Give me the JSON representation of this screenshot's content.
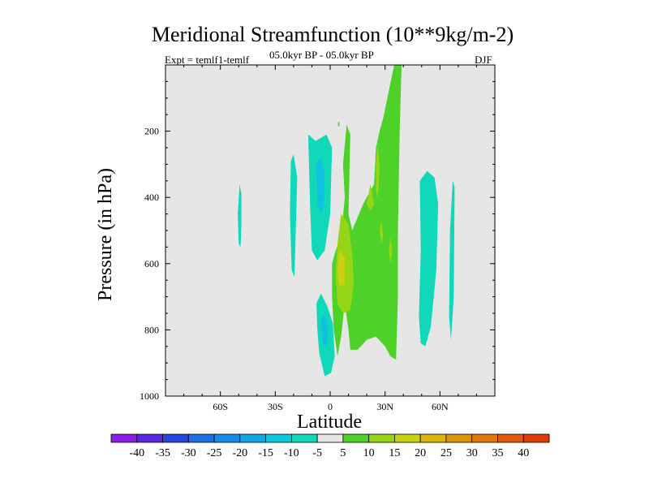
{
  "chart_data": {
    "type": "contour",
    "title": "Meridional Streamfunction (10**9kg/m-2)",
    "subtitle_left": "Expt = temlf1-temlf",
    "subtitle_center": "05.0kyr BP - 05.0kyr BP",
    "subtitle_right": "DJF",
    "xlabel": "Latitude",
    "ylabel": "Pressure (in hPa)",
    "xlim": [
      -90,
      90
    ],
    "ylim": [
      1000,
      0
    ],
    "x_ticks": [
      {
        "value": -60,
        "label": "60S"
      },
      {
        "value": -30,
        "label": "30S"
      },
      {
        "value": 0,
        "label": "0"
      },
      {
        "value": 30,
        "label": "30N"
      },
      {
        "value": 60,
        "label": "60N"
      }
    ],
    "y_ticks": [
      {
        "value": 200,
        "label": "200"
      },
      {
        "value": 400,
        "label": "400"
      },
      {
        "value": 600,
        "label": "600"
      },
      {
        "value": 800,
        "label": "800"
      },
      {
        "value": 1000,
        "label": "1000"
      }
    ],
    "background_color": "#e6e6e6",
    "colorbar": {
      "labels": [
        "-40",
        "-35",
        "-30",
        "-25",
        "-20",
        "-15",
        "-10",
        "-5",
        "5",
        "10",
        "15",
        "20",
        "25",
        "30",
        "35",
        "40"
      ],
      "colors": [
        "#8a1ee6",
        "#5a28e0",
        "#2a46e0",
        "#1e6ee6",
        "#148ce8",
        "#12a6e6",
        "#10c8dc",
        "#10d8b8",
        "#e6e6e6",
        "#4ed22a",
        "#96d616",
        "#c8d20e",
        "#dcb40a",
        "#dc960a",
        "#e0780a",
        "#e05a0a",
        "#e03c0a"
      ]
    },
    "regions": [
      {
        "name": "neg-5-a",
        "color": "#10d8b8",
        "points": [
          [
            -49.5,
            360
          ],
          [
            -48.5,
            390
          ],
          [
            -48.5,
            480
          ],
          [
            -49,
            550
          ],
          [
            -50,
            540
          ],
          [
            -50.5,
            450
          ]
        ]
      },
      {
        "name": "neg-5-b",
        "color": "#10d8b8",
        "points": [
          [
            -21.5,
            290
          ],
          [
            -20,
            270
          ],
          [
            -18,
            340
          ],
          [
            -19.5,
            640
          ],
          [
            -21,
            620
          ],
          [
            -22,
            450
          ]
        ]
      },
      {
        "name": "neg-5-c",
        "color": "#10d8b8",
        "points": [
          [
            -12,
            210
          ],
          [
            -8,
            230
          ],
          [
            -5,
            220
          ],
          [
            -2,
            210
          ],
          [
            1,
            250
          ],
          [
            0,
            450
          ],
          [
            -3,
            560
          ],
          [
            -7,
            590
          ],
          [
            -10,
            560
          ],
          [
            -11,
            420
          ]
        ]
      },
      {
        "name": "neg-10-c",
        "color": "#12c0e0",
        "points": [
          [
            -7.5,
            300
          ],
          [
            -5,
            280
          ],
          [
            -3,
            330
          ],
          [
            -3.5,
            420
          ],
          [
            -5,
            450
          ],
          [
            -7,
            420
          ]
        ]
      },
      {
        "name": "neg-5-d",
        "color": "#10d8b8",
        "points": [
          [
            -7.5,
            720
          ],
          [
            -5,
            690
          ],
          [
            -1.5,
            730
          ],
          [
            1.5,
            780
          ],
          [
            2.5,
            880
          ],
          [
            0.5,
            930
          ],
          [
            -3,
            940
          ],
          [
            -6,
            870
          ],
          [
            -7,
            800
          ]
        ]
      },
      {
        "name": "neg-10-d",
        "color": "#12c0e0",
        "points": [
          [
            -5,
            770
          ],
          [
            -3,
            750
          ],
          [
            -1,
            800
          ],
          [
            -2,
            850
          ],
          [
            -4,
            840
          ]
        ]
      },
      {
        "name": "neg-5-e",
        "color": "#10d8b8",
        "points": [
          [
            49,
            350
          ],
          [
            53,
            320
          ],
          [
            57,
            340
          ],
          [
            59,
            420
          ],
          [
            58,
            620
          ],
          [
            55,
            790
          ],
          [
            52,
            850
          ],
          [
            49.5,
            840
          ],
          [
            48.5,
            760
          ],
          [
            49.5,
            560
          ]
        ]
      },
      {
        "name": "neg-5-f",
        "color": "#10d8b8",
        "points": [
          [
            67,
            350
          ],
          [
            68,
            370
          ],
          [
            67.5,
            700
          ],
          [
            66,
            830
          ],
          [
            65,
            760
          ],
          [
            65.5,
            500
          ]
        ]
      },
      {
        "name": "pos-5-main",
        "color": "#4ed22a",
        "points": [
          [
            9,
            180
          ],
          [
            11,
            210
          ],
          [
            10,
            450
          ],
          [
            12,
            500
          ],
          [
            18,
            420
          ],
          [
            24,
            360
          ],
          [
            25,
            250
          ],
          [
            27,
            200
          ],
          [
            29,
            160
          ],
          [
            35,
            0
          ],
          [
            39,
            0
          ],
          [
            38,
            200
          ],
          [
            37,
            500
          ],
          [
            37,
            700
          ],
          [
            36,
            890
          ],
          [
            33,
            880
          ],
          [
            30,
            850
          ],
          [
            25,
            820
          ],
          [
            20,
            830
          ],
          [
            15,
            860
          ],
          [
            11,
            860
          ],
          [
            10,
            800
          ],
          [
            8,
            720
          ],
          [
            6,
            820
          ],
          [
            4,
            880
          ],
          [
            2,
            800
          ],
          [
            1,
            700
          ],
          [
            1,
            600
          ],
          [
            3,
            560
          ],
          [
            6,
            520
          ],
          [
            8,
            400
          ],
          [
            7,
            300
          ]
        ]
      },
      {
        "name": "pos-5-small",
        "color": "#4ed22a",
        "points": [
          [
            4.3,
            175
          ],
          [
            5,
            170
          ],
          [
            5,
            185
          ],
          [
            4.3,
            185
          ]
        ]
      },
      {
        "name": "pos-10-a",
        "color": "#96d616",
        "points": [
          [
            6,
            450
          ],
          [
            10,
            480
          ],
          [
            12,
            570
          ],
          [
            13,
            660
          ],
          [
            11,
            740
          ],
          [
            7,
            750
          ],
          [
            4,
            720
          ],
          [
            3,
            640
          ],
          [
            4,
            540
          ]
        ]
      },
      {
        "name": "pos-10-b",
        "color": "#96d616",
        "points": [
          [
            22,
            360
          ],
          [
            24,
            420
          ],
          [
            22,
            440
          ],
          [
            20,
            420
          ]
        ]
      },
      {
        "name": "pos-10-c",
        "color": "#96d616",
        "points": [
          [
            26,
            230
          ],
          [
            27,
            320
          ],
          [
            26,
            400
          ],
          [
            25,
            380
          ],
          [
            25,
            300
          ]
        ]
      },
      {
        "name": "pos-10-d",
        "color": "#96d616",
        "points": [
          [
            28,
            470
          ],
          [
            29,
            520
          ],
          [
            28,
            540
          ],
          [
            27,
            500
          ]
        ]
      },
      {
        "name": "pos-10-e",
        "color": "#96d616",
        "points": [
          [
            33,
            520
          ],
          [
            34,
            560
          ],
          [
            33,
            600
          ],
          [
            32,
            560
          ]
        ]
      },
      {
        "name": "pos-15-a",
        "color": "#c8d20e",
        "points": [
          [
            5,
            560
          ],
          [
            8,
            580
          ],
          [
            8,
            660
          ],
          [
            5,
            670
          ],
          [
            4,
            620
          ]
        ]
      }
    ]
  }
}
